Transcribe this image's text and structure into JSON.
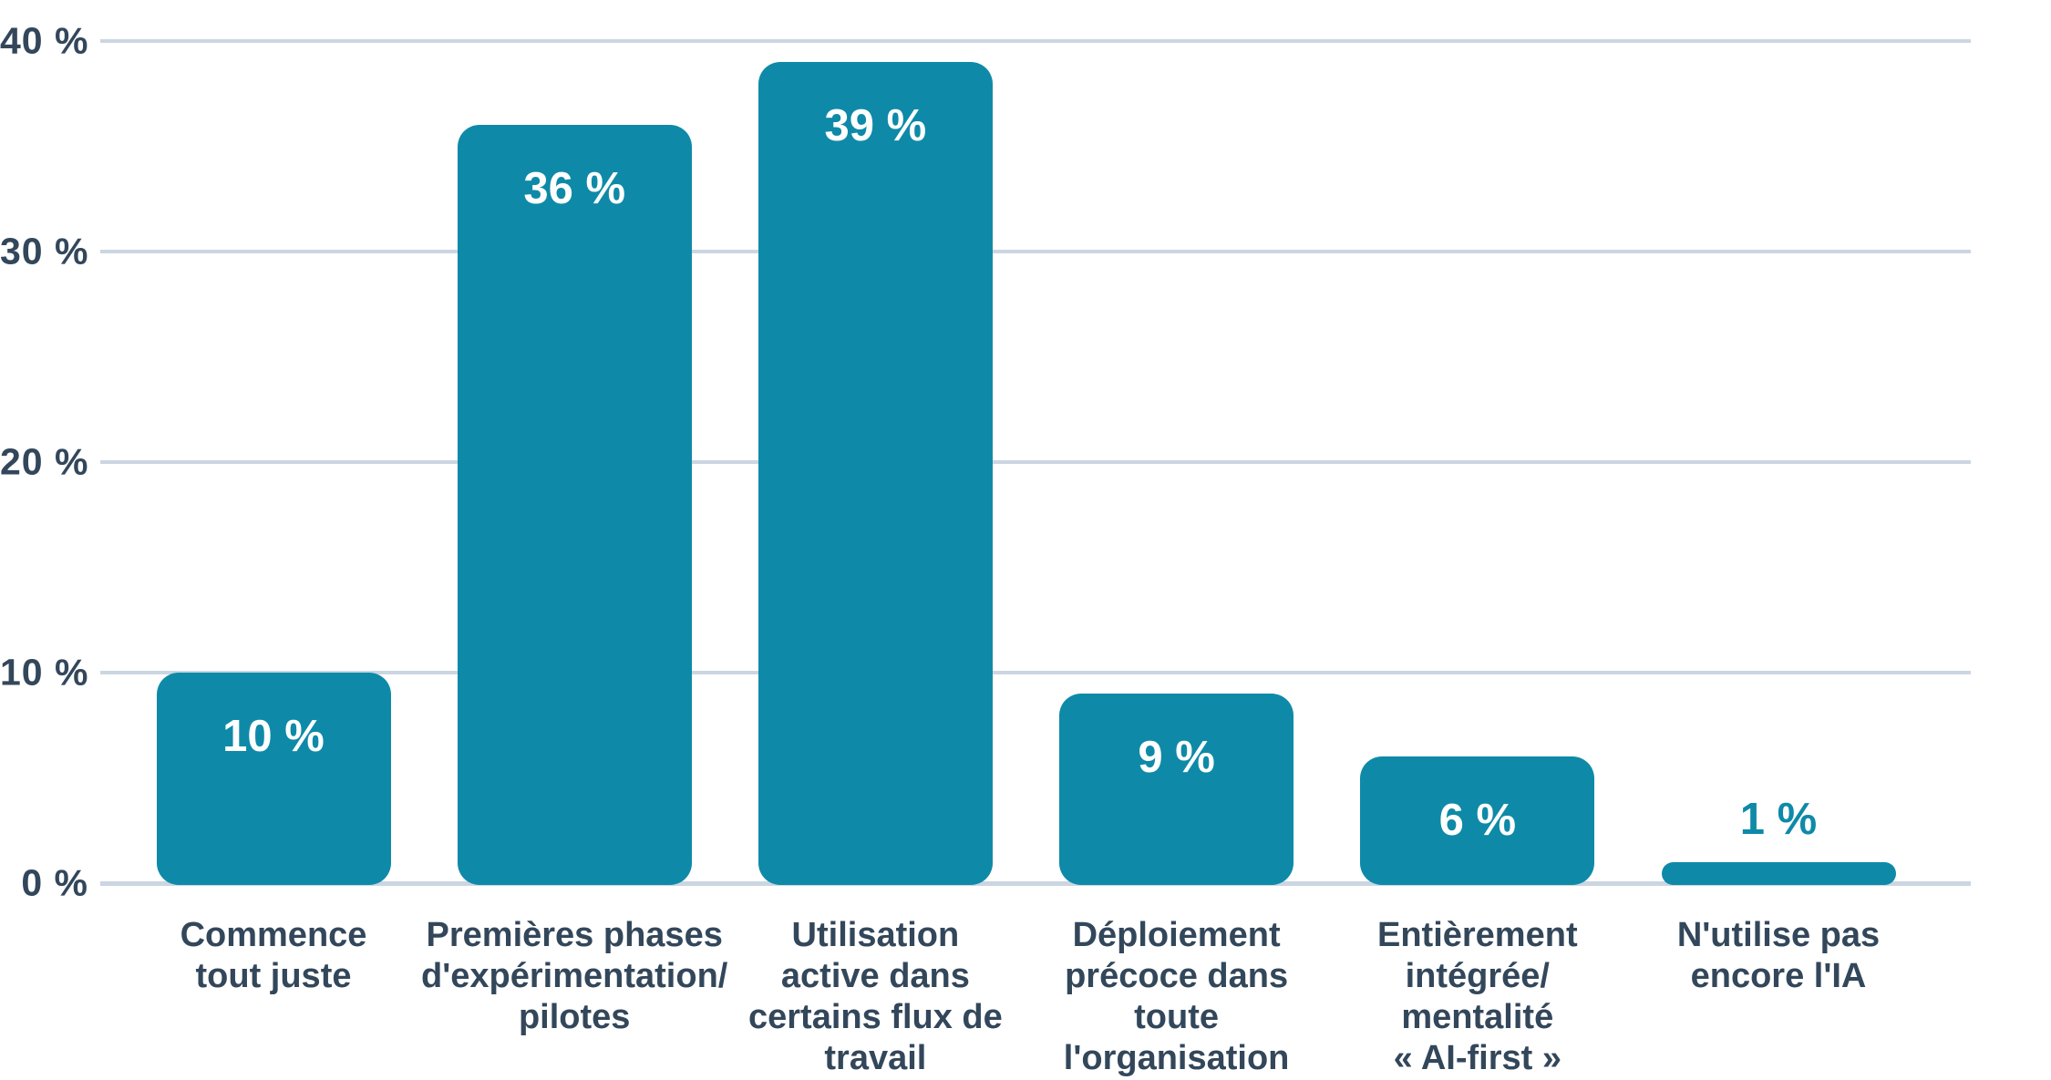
{
  "chart_data": {
    "type": "bar",
    "title": "",
    "xlabel": "",
    "ylabel": "",
    "categories": [
      "Commence tout juste",
      "Premières phases d'expérimentation/ pilotes",
      "Utilisation active dans certains flux de travail",
      "Déploiement précoce dans toute l'organisation",
      "Entièrement intégrée/ mentalité « AI-first »",
      "N'utilise pas encore l'IA"
    ],
    "category_lines": [
      [
        "Commence",
        "tout juste"
      ],
      [
        "Premières phases",
        "d'expérimentation/",
        "pilotes"
      ],
      [
        "Utilisation",
        "active dans",
        "certains flux de",
        "travail"
      ],
      [
        "Déploiement",
        "précoce dans",
        "toute",
        "l'organisation"
      ],
      [
        "Entièrement",
        "intégrée/",
        "mentalité",
        "« AI-first »"
      ],
      [
        "N'utilise pas",
        "encore l'IA"
      ]
    ],
    "values": [
      10,
      36,
      39,
      9,
      6,
      1
    ],
    "value_labels": [
      "10 %",
      "36 %",
      "39 %",
      "9 %",
      "6 %",
      "1 %"
    ],
    "value_label_positions": [
      "inside",
      "inside",
      "inside",
      "inside",
      "inside",
      "outside"
    ],
    "y_ticks": [
      {
        "value": 0,
        "label": "0 %"
      },
      {
        "value": 10,
        "label": "10 %"
      },
      {
        "value": 20,
        "label": "20 %"
      },
      {
        "value": 30,
        "label": "30 %"
      },
      {
        "value": 40,
        "label": "40 %"
      }
    ],
    "ylim": [
      0,
      40
    ],
    "grid": true,
    "legend_position": "none",
    "colors": {
      "bar": "#0e8aa8",
      "axis_text": "#33475b",
      "gridline": "#cbd6e2",
      "value_label_inside": "#ffffff",
      "value_label_outside": "#0e8aa8",
      "background": "#ffffff"
    }
  }
}
